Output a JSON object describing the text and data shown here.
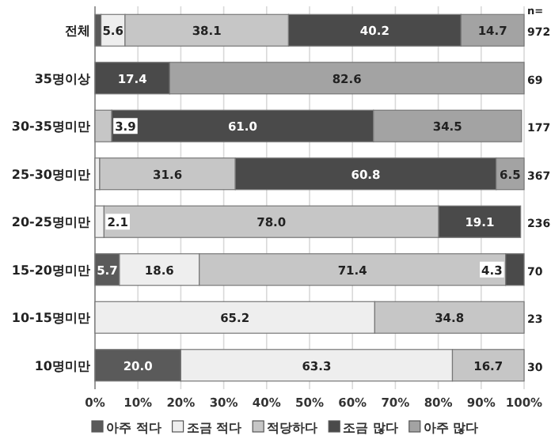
{
  "chart_data": {
    "type": "bar",
    "orientation": "horizontal",
    "stacked": true,
    "categories": [
      "전체",
      "35명이상",
      "30-35명미만",
      "25-30명미만",
      "20-25명미만",
      "15-20명미만",
      "10-15명미만",
      "10명미만"
    ],
    "series": [
      {
        "name": "아주 적다",
        "color": "#5a5a5a",
        "values": [
          1.4,
          null,
          null,
          null,
          null,
          5.7,
          null,
          20.0
        ],
        "value_labels": [
          null,
          null,
          null,
          null,
          null,
          "5.7",
          null,
          "20.0"
        ]
      },
      {
        "name": "조금 적다",
        "color": "#eeeeee",
        "values": [
          5.6,
          null,
          null,
          1.1,
          2.1,
          18.6,
          65.2,
          63.3
        ],
        "value_labels": [
          "5.6",
          null,
          null,
          null,
          "2.1",
          "18.6",
          "65.2",
          "63.3"
        ]
      },
      {
        "name": "적당하다",
        "color": "#c6c6c6",
        "values": [
          38.1,
          null,
          3.9,
          31.6,
          78.0,
          71.4,
          34.8,
          16.7
        ],
        "value_labels": [
          "38.1",
          null,
          "3.9",
          "31.6",
          "78.0",
          "71.4",
          "34.8",
          "16.7"
        ]
      },
      {
        "name": "조금 많다",
        "color": "#4a4a4a",
        "values": [
          40.2,
          17.4,
          61.0,
          60.8,
          19.1,
          4.3,
          null,
          null
        ],
        "value_labels": [
          "40.2",
          "17.4",
          "61.0",
          "60.8",
          "19.1",
          "4.3",
          null,
          null
        ]
      },
      {
        "name": "아주 많다",
        "color": "#a3a3a3",
        "values": [
          14.7,
          82.6,
          34.5,
          6.5,
          null,
          null,
          null,
          null
        ],
        "value_labels": [
          "14.7",
          "82.6",
          "34.5",
          "6.5",
          null,
          null,
          null,
          null
        ]
      }
    ],
    "xlim": [
      0,
      100
    ],
    "xticks": [
      {
        "value": 0,
        "label": "0%"
      },
      {
        "value": 10,
        "label": "10%"
      },
      {
        "value": 20,
        "label": "20%"
      },
      {
        "value": 30,
        "label": "30%"
      },
      {
        "value": 40,
        "label": "40%"
      },
      {
        "value": 50,
        "label": "50%"
      },
      {
        "value": 60,
        "label": "60%"
      },
      {
        "value": 70,
        "label": "70%"
      },
      {
        "value": 80,
        "label": "80%"
      },
      {
        "value": 90,
        "label": "90%"
      },
      {
        "value": 100,
        "label": "100%"
      }
    ],
    "grid": "x",
    "legend": "bottom",
    "annotations": [
      "n=",
      "972",
      "69",
      "177",
      "367",
      "236",
      "70",
      "23",
      "30"
    ]
  }
}
